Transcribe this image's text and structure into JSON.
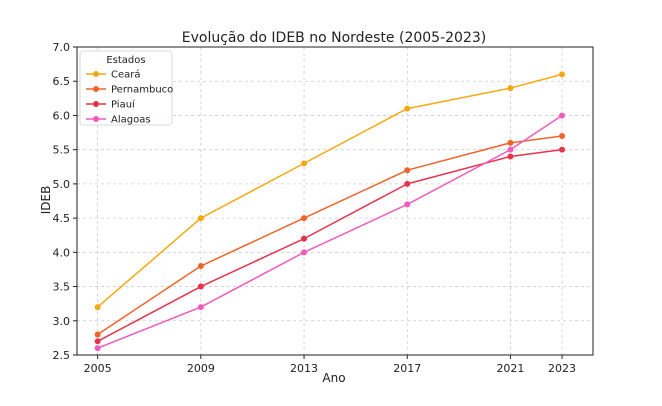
{
  "chart_data": {
    "type": "line",
    "title": "Evolução do IDEB no Nordeste (2005-2023)",
    "xlabel": "Ano",
    "ylabel": "IDEB",
    "x": [
      2005,
      2009,
      2013,
      2017,
      2021,
      2023
    ],
    "x_tick_labels": [
      "2005",
      "2009",
      "2013",
      "2017",
      "2021",
      "2023"
    ],
    "y_ticks": [
      2.5,
      3.0,
      3.5,
      4.0,
      4.5,
      5.0,
      5.5,
      6.0,
      6.5,
      7.0
    ],
    "y_tick_labels": [
      "2.5",
      "3.0",
      "3.5",
      "4.0",
      "4.5",
      "5.0",
      "5.5",
      "6.0",
      "6.5",
      "7.0"
    ],
    "ylim": [
      2.5,
      7.0
    ],
    "xlim": [
      2004.2,
      2024.2
    ],
    "grid": true,
    "legend": {
      "title": "Estados",
      "placement": "top-left"
    },
    "series": [
      {
        "name": "Ceará",
        "color": "#f5a90f",
        "values": [
          3.2,
          4.5,
          5.3,
          6.1,
          6.4,
          6.6
        ]
      },
      {
        "name": "Pernambuco",
        "color": "#f0642a",
        "values": [
          2.8,
          3.8,
          4.5,
          5.2,
          5.6,
          5.7
        ]
      },
      {
        "name": "Piauí",
        "color": "#e8324c",
        "values": [
          2.7,
          3.5,
          4.2,
          5.0,
          5.4,
          5.5
        ]
      },
      {
        "name": "Alagoas",
        "color": "#f25abf",
        "values": [
          2.6,
          3.2,
          4.0,
          4.7,
          5.5,
          6.0
        ]
      }
    ]
  }
}
